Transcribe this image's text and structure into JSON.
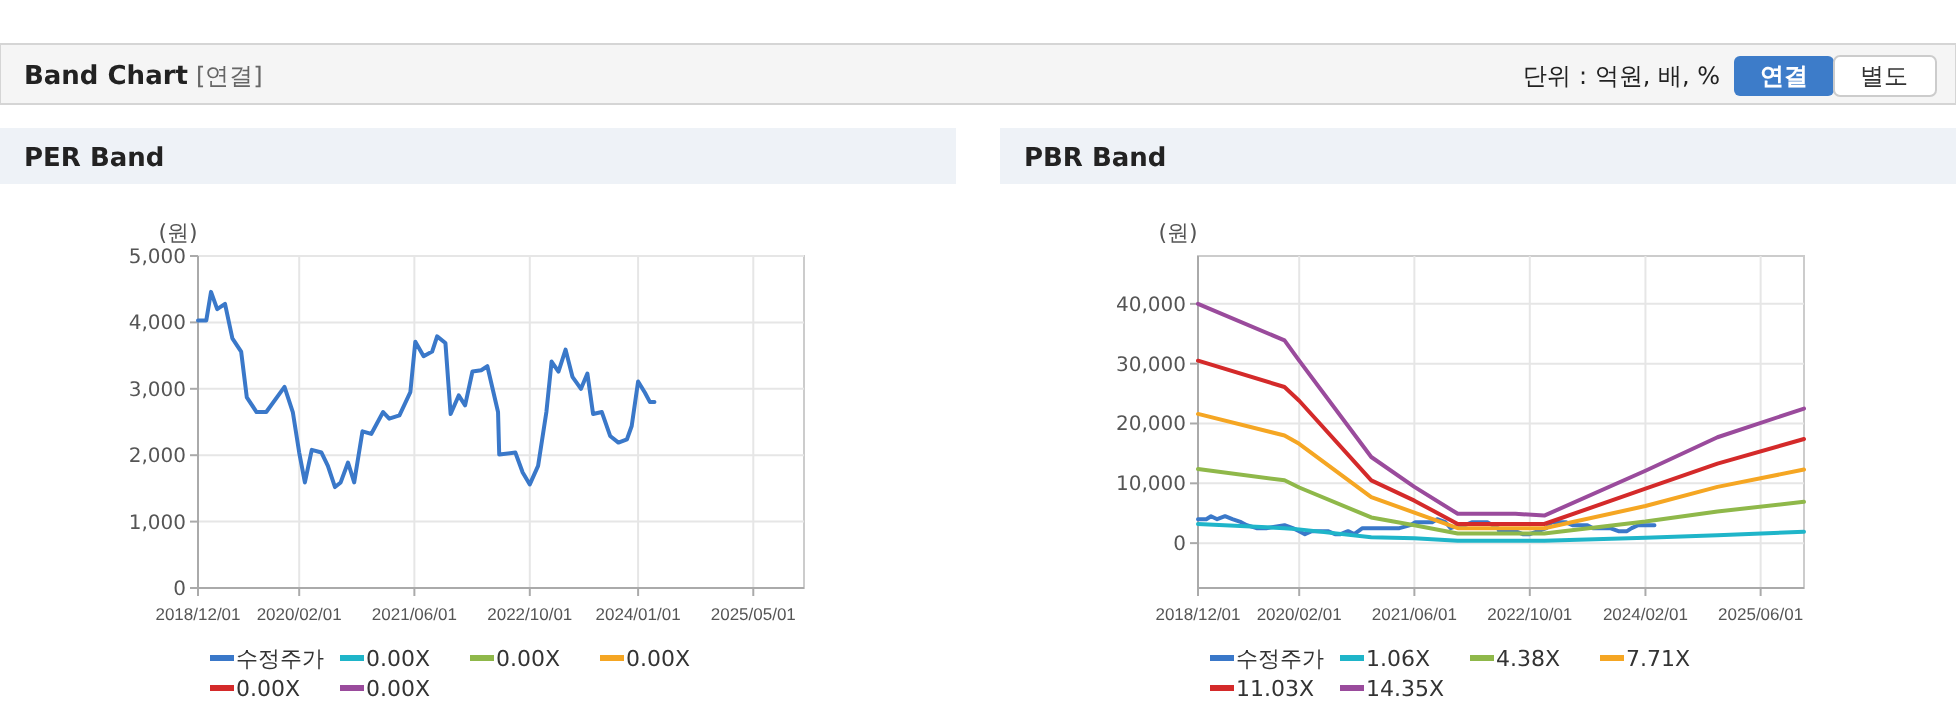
{
  "chart_data": [
    {
      "type": "other",
      "title": "Band Chart",
      "subtitle": "[연결]",
      "annotations": [
        "단위 : 억원, 배, %",
        "연결",
        "별도"
      ]
    },
    {
      "type": "line",
      "title": "PER Band",
      "ylabel": "(원)",
      "grid": true,
      "legend": "bottom",
      "marker": "none",
      "line_style": "solid",
      "xlim": [
        "2018-12-01",
        "2025-12-01"
      ],
      "xticks": [
        {
          "value": "2018-12-01",
          "label": "2018/12/01"
        },
        {
          "value": "2020-02-01",
          "label": "2020/02/01"
        },
        {
          "value": "2021-06-01",
          "label": "2021/06/01"
        },
        {
          "value": "2022-10-01",
          "label": "2022/10/01"
        },
        {
          "value": "2024-01-01",
          "label": "2024/01/01"
        },
        {
          "value": "2025-05-01",
          "label": "2025/05/01"
        }
      ],
      "ylim": [
        0,
        5000
      ],
      "yticks": [
        0,
        {
          "value": 1000,
          "label": "1,000"
        },
        {
          "value": 2000,
          "label": "2,000"
        },
        {
          "value": 3000,
          "label": "3,000"
        },
        {
          "value": 4000,
          "label": "4,000"
        },
        {
          "value": 5000,
          "label": "5,000"
        }
      ],
      "series": [
        {
          "name": "수정주가",
          "color": "#3a78c9",
          "x": [
            "2018-12-01",
            "2019-01-05",
            "2019-01-25",
            "2019-02-20",
            "2019-03-25",
            "2019-04-25",
            "2019-06-01",
            "2019-06-25",
            "2019-08-05",
            "2019-09-15",
            "2019-12-01",
            "2020-01-05",
            "2020-02-01",
            "2020-02-25",
            "2020-03-25",
            "2020-05-05",
            "2020-06-01",
            "2020-07-01",
            "2020-07-25",
            "2020-08-25",
            "2020-09-20",
            "2020-10-25",
            "2020-12-01",
            "2021-01-20",
            "2021-02-15",
            "2021-03-30",
            "2021-05-15",
            "2021-06-05",
            "2021-07-10",
            "2021-08-15",
            "2021-09-05",
            "2021-10-10",
            "2021-11-01",
            "2021-12-05",
            "2022-01-01",
            "2022-02-01",
            "2022-03-10",
            "2022-04-05",
            "2022-05-20",
            "2022-05-25",
            "2022-08-01",
            "2022-09-01",
            "2022-10-01",
            "2022-11-05",
            "2022-12-10",
            "2023-01-01",
            "2023-01-30",
            "2023-03-01",
            "2023-03-30",
            "2023-05-05",
            "2023-06-01",
            "2023-06-25",
            "2023-08-01",
            "2023-09-05",
            "2023-10-10",
            "2023-11-15",
            "2023-12-05",
            "2024-01-01",
            "2024-01-30",
            "2024-02-20",
            "2024-03-10"
          ],
          "values": [
            4030,
            4030,
            4460,
            4200,
            4280,
            3760,
            3560,
            2870,
            2650,
            2650,
            3030,
            2650,
            2040,
            1590,
            2080,
            2040,
            1840,
            1520,
            1590,
            1890,
            1590,
            2360,
            2320,
            2650,
            2550,
            2600,
            2950,
            3710,
            3490,
            3560,
            3790,
            3690,
            2620,
            2900,
            2750,
            3260,
            3280,
            3340,
            2650,
            2010,
            2040,
            1740,
            1560,
            1840,
            2650,
            3410,
            3260,
            3590,
            3180,
            3000,
            3230,
            2620,
            2650,
            2290,
            2190,
            2240,
            2440,
            3110,
            2940,
            2800,
            2800
          ]
        },
        {
          "name": "0.00X",
          "color": "#1fb5c9"
        },
        {
          "name": "0.00X",
          "color": "#8fb84a"
        },
        {
          "name": "0.00X",
          "color": "#f5a623"
        },
        {
          "name": "0.00X",
          "color": "#d42a2a"
        },
        {
          "name": "0.00X",
          "color": "#9a4b9c"
        }
      ]
    },
    {
      "type": "line",
      "title": "PBR Band",
      "ylabel": "(원)",
      "grid": true,
      "legend": "bottom",
      "marker": "none",
      "line_style": "solid",
      "xlim": [
        "2018-12-01",
        "2025-12-01"
      ],
      "xticks": [
        {
          "value": "2018-12-01",
          "label": "2018/12/01"
        },
        {
          "value": "2020-02-01",
          "label": "2020/02/01"
        },
        {
          "value": "2021-06-01",
          "label": "2021/06/01"
        },
        {
          "value": "2022-10-01",
          "label": "2022/10/01"
        },
        {
          "value": "2024-02-01",
          "label": "2024/02/01"
        },
        {
          "value": "2025-06-01",
          "label": "2025/06/01"
        }
      ],
      "ylim": [
        -7500,
        48000
      ],
      "yticks": [
        0,
        {
          "value": 10000,
          "label": "10,000"
        },
        {
          "value": 20000,
          "label": "20,000"
        },
        {
          "value": 30000,
          "label": "30,000"
        },
        {
          "value": 40000,
          "label": "40,000"
        }
      ],
      "x": [
        "2018-12-01",
        "2019-12-01",
        "2020-02-01",
        "2020-12-01",
        "2021-06-01",
        "2021-12-01",
        "2022-08-01",
        "2022-12-01",
        "2024-02-01",
        "2024-12-01",
        "2025-12-01"
      ],
      "series": [
        {
          "name": "수정주가",
          "color": "#3a78c9",
          "x": [
            "2018-12-01",
            "2019-01-05",
            "2019-01-25",
            "2019-02-20",
            "2019-03-25",
            "2019-04-25",
            "2019-06-01",
            "2019-06-25",
            "2019-08-05",
            "2019-09-15",
            "2019-12-01",
            "2020-01-05",
            "2020-02-01",
            "2020-02-25",
            "2020-03-25",
            "2020-05-05",
            "2020-06-01",
            "2020-07-01",
            "2020-07-25",
            "2020-08-25",
            "2020-09-20",
            "2020-10-25",
            "2020-12-01",
            "2021-01-20",
            "2021-02-15",
            "2021-03-30",
            "2021-05-15",
            "2021-06-05",
            "2021-07-10",
            "2021-08-15",
            "2021-09-05",
            "2021-10-10",
            "2021-11-01",
            "2021-12-05",
            "2022-01-01",
            "2022-02-01",
            "2022-03-10",
            "2022-04-05",
            "2022-05-20",
            "2022-05-25",
            "2022-08-01",
            "2022-09-01",
            "2022-10-01",
            "2022-11-05",
            "2022-12-10",
            "2023-01-01",
            "2023-01-30",
            "2023-03-01",
            "2023-03-30",
            "2023-05-05",
            "2023-06-01",
            "2023-06-25",
            "2023-08-01",
            "2023-09-05",
            "2023-10-10",
            "2023-11-15",
            "2023-12-05",
            "2024-01-01",
            "2024-01-30",
            "2024-02-20",
            "2024-03-10"
          ],
          "values": [
            4000,
            4000,
            4500,
            4000,
            4500,
            4000,
            3500,
            3000,
            2500,
            2500,
            3000,
            2500,
            2000,
            1500,
            2000,
            2000,
            2000,
            1500,
            1500,
            2000,
            1500,
            2500,
            2500,
            2500,
            2500,
            2500,
            3000,
            3500,
            3500,
            3500,
            4000,
            3500,
            2500,
            3000,
            3000,
            3500,
            3500,
            3500,
            2500,
            2000,
            2000,
            1500,
            1500,
            2000,
            2500,
            3500,
            3500,
            3500,
            3000,
            3000,
            3000,
            2500,
            2500,
            2500,
            2000,
            2000,
            2500,
            3000,
            3000,
            3000,
            3000
          ]
        },
        {
          "name": "1.06X",
          "color": "#1fb5c9",
          "values": [
            3200,
            2500,
            2300,
            1000,
            800,
            400,
            400,
            400,
            900,
            1300,
            1900
          ]
        },
        {
          "name": "4.38X",
          "color": "#8fb84a",
          "values": [
            12400,
            10500,
            9300,
            4300,
            3000,
            1600,
            1600,
            1600,
            3600,
            5300,
            6900
          ]
        },
        {
          "name": "7.71X",
          "color": "#f5a623",
          "values": [
            21600,
            18000,
            16600,
            7700,
            5100,
            2500,
            2500,
            2500,
            6200,
            9400,
            12300
          ]
        },
        {
          "name": "11.03X",
          "color": "#d42a2a",
          "values": [
            30500,
            26100,
            23800,
            10500,
            7100,
            3200,
            3200,
            3200,
            9100,
            13300,
            17400
          ]
        },
        {
          "name": "14.35X",
          "color": "#9a4b9c",
          "values": [
            40000,
            33900,
            30500,
            14400,
            9400,
            4900,
            4900,
            4600,
            12100,
            17700,
            22500
          ]
        }
      ]
    }
  ]
}
